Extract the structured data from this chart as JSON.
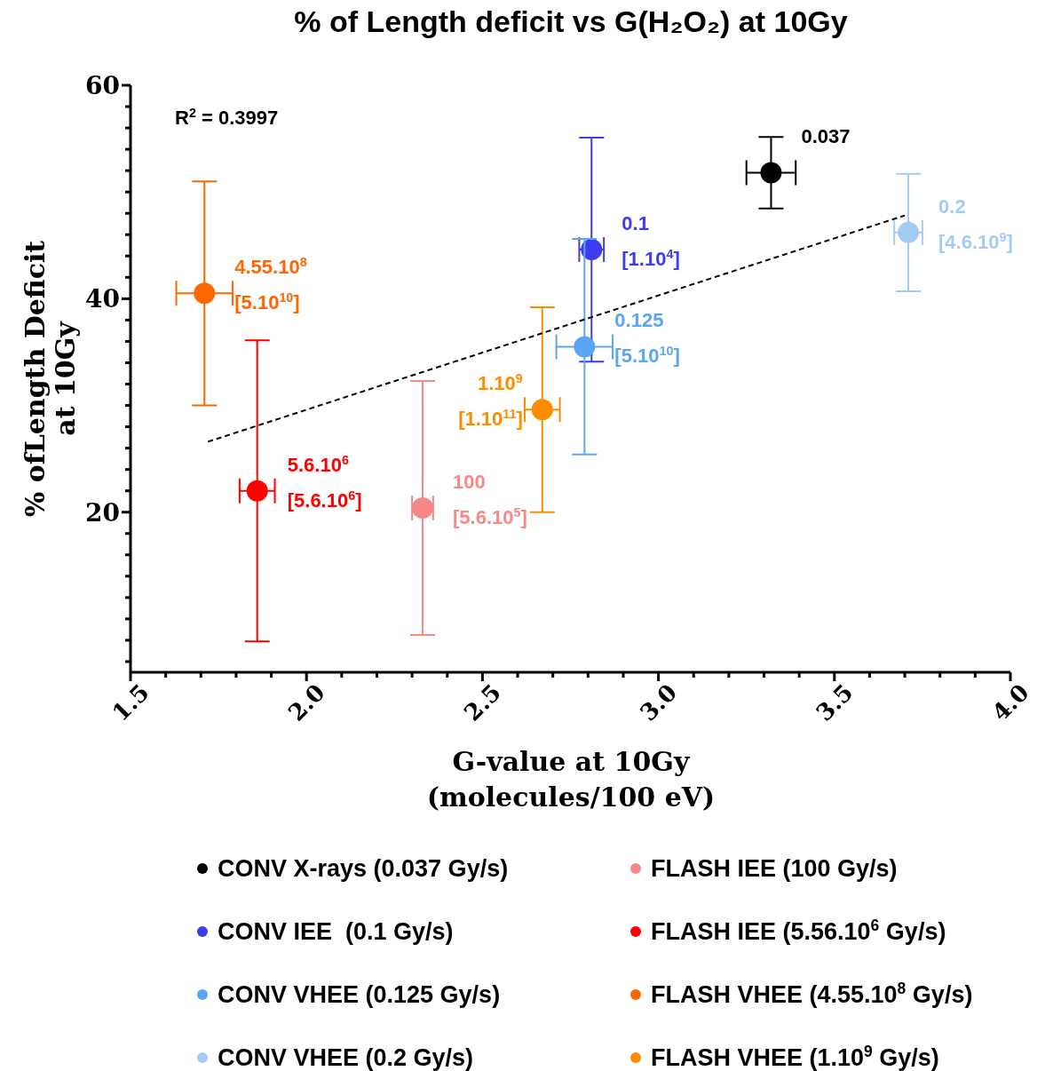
{
  "chart_data": {
    "type": "scatter",
    "title": "% of Length deficit vs G(H₂O₂) at 10Gy",
    "xlabel": "G-value at 10Gy\n(molecules/100 eV)",
    "ylabel": "% ofLength Deficit\nat 10Gy",
    "xlim": [
      1.5,
      4.0
    ],
    "ylim": [
      5,
      60
    ],
    "xticks": [
      1.5,
      {
        "value": 1.6,
        "label": null
      },
      {
        "value": 1.7,
        "label": null
      },
      {
        "value": 1.8,
        "label": null
      },
      {
        "value": 1.9,
        "label": null
      },
      {
        "value": 2,
        "label": "2.0"
      },
      {
        "value": 2.1,
        "label": null
      },
      {
        "value": 2.2,
        "label": null
      },
      {
        "value": 2.3,
        "label": null
      },
      {
        "value": 2.4,
        "label": null
      },
      2.5,
      {
        "value": 2.6,
        "label": null
      },
      {
        "value": 2.7,
        "label": null
      },
      {
        "value": 2.8,
        "label": null
      },
      {
        "value": 2.9,
        "label": null
      },
      {
        "value": 3,
        "label": "3.0"
      },
      {
        "value": 3.1,
        "label": null
      },
      {
        "value": 3.2,
        "label": null
      },
      {
        "value": 3.3,
        "label": null
      },
      {
        "value": 3.4,
        "label": null
      },
      3.5,
      {
        "value": 3.6,
        "label": null
      },
      {
        "value": 3.7,
        "label": null
      },
      {
        "value": 3.8,
        "label": null
      },
      {
        "value": 3.9,
        "label": null
      },
      {
        "value": 4,
        "label": "4.0"
      }
    ],
    "yticks": [
      {
        "value": 6,
        "label": null
      },
      {
        "value": 8,
        "label": null
      },
      {
        "value": 10,
        "label": null
      },
      {
        "value": 12,
        "label": null
      },
      {
        "value": 14,
        "label": null
      },
      {
        "value": 16,
        "label": null
      },
      {
        "value": 18,
        "label": null
      },
      20,
      {
        "value": 22,
        "label": null
      },
      {
        "value": 24,
        "label": null
      },
      {
        "value": 26,
        "label": null
      },
      {
        "value": 28,
        "label": null
      },
      {
        "value": 30,
        "label": null
      },
      {
        "value": 32,
        "label": null
      },
      {
        "value": 34,
        "label": null
      },
      {
        "value": 36,
        "label": null
      },
      {
        "value": 38,
        "label": null
      },
      40,
      {
        "value": 42,
        "label": null
      },
      {
        "value": 44,
        "label": null
      },
      {
        "value": 46,
        "label": null
      },
      {
        "value": 48,
        "label": null
      },
      {
        "value": 50,
        "label": null
      },
      {
        "value": 52,
        "label": null
      },
      {
        "value": 54,
        "label": null
      },
      {
        "value": 56,
        "label": null
      },
      {
        "value": 58,
        "label": null
      },
      60
    ],
    "grid": false,
    "legend": "bottom",
    "series": [
      {
        "name": "CONV X-rays (0.037 Gy/s)",
        "color": "#000000",
        "marker": "circle",
        "x": [
          3.32
        ],
        "values": [
          51.8
        ],
        "errors": [
          3.35
        ],
        "xerrors": [
          0.07
        ]
      },
      {
        "name": "CONV IEE  (0.1 Gy/s)",
        "color": "#3c3cf0",
        "marker": "circle",
        "x": [
          2.81
        ],
        "values": [
          44.6
        ],
        "errors": [
          10.5
        ],
        "xerrors": [
          0.035
        ]
      },
      {
        "name": "CONV VHEE (0.125 Gy/s)",
        "color": "#5aa5f5",
        "marker": "circle",
        "x": [
          2.79
        ],
        "values": [
          35.5
        ],
        "errors": [
          10.1
        ],
        "xerrors": [
          0.08
        ]
      },
      {
        "name": "CONV VHEE (0.2 Gy/s)",
        "color": "#a5cbf5",
        "marker": "circle",
        "x": [
          3.71
        ],
        "values": [
          46.2
        ],
        "errors": [
          5.5
        ],
        "xerrors": [
          0.04
        ]
      },
      {
        "name": "FLASH IEE (100 Gy/s)",
        "color": "#f78888",
        "marker": "circle",
        "x": [
          2.33
        ],
        "values": [
          20.4
        ],
        "errors": [
          11.9
        ],
        "xerrors": [
          0.03
        ]
      },
      {
        "name": "FLASH IEE (5.56.10$^{6}$ Gy/s)",
        "color": "#ff0000",
        "marker": "circle",
        "x": [
          1.86
        ],
        "values": [
          22.0
        ],
        "errors": [
          14.1
        ],
        "xerrors": [
          0.05
        ]
      },
      {
        "name": "FLASH VHEE (4.55.10$^{8}$ Gy/s)",
        "color": "#ff6600",
        "marker": "circle",
        "x": [
          1.71
        ],
        "values": [
          40.5
        ],
        "errors": [
          10.5
        ],
        "xerrors": [
          0.08
        ]
      },
      {
        "name": "FLASH VHEE (1.10$^{9}$ Gy/s)",
        "color": "#ff8c00",
        "marker": "circle",
        "x": [
          2.67
        ],
        "values": [
          29.6
        ],
        "errors": [
          9.6
        ],
        "xerrors": [
          0.05
        ]
      },
      {
        "type": "line",
        "color": "#000000",
        "line_style": "dashed",
        "marker": "none",
        "x": [
          1.72,
          3.7
        ],
        "values": [
          26.6,
          47.8
        ]
      }
    ],
    "annotations": [
      "R$^{2}$ = 0.3997",
      {
        "text": "0.037",
        "x": 3.32,
        "y": 51.8
      },
      {
        "text": "0.1",
        "x": 2.81,
        "y": 44.6
      },
      {
        "text": "[1.10$^{4}$]",
        "x": 2.81,
        "y": 44.6
      },
      {
        "text": "0.125",
        "x": 2.79,
        "y": 35.5
      },
      {
        "text": "[5.10$^{10}$]",
        "x": 2.79,
        "y": 35.5
      },
      {
        "text": "0.2",
        "x": 3.71,
        "y": 46.2
      },
      {
        "text": "[4.6.10$^{9}$]",
        "x": 3.71,
        "y": 46.2
      },
      {
        "text": "100",
        "x": 2.33,
        "y": 20.4
      },
      {
        "text": "[5.6.10$^{5}$]",
        "x": 2.33,
        "y": 20.4
      },
      {
        "text": "5.6.10$^{6}$",
        "x": 1.86,
        "y": 22.0
      },
      {
        "text": "[5.6.10$^{6}$]",
        "x": 1.86,
        "y": 22.0
      },
      {
        "text": "4.55.10$^{8}$",
        "x": 1.71,
        "y": 40.5
      },
      {
        "text": "[5.10$^{10}$]",
        "x": 1.71,
        "y": 40.5
      },
      {
        "text": "1.10$^{9}$",
        "x": 2.67,
        "y": 29.6
      },
      {
        "text": "[1.10$^{11}$]",
        "x": 2.67,
        "y": 29.6
      }
    ]
  }
}
